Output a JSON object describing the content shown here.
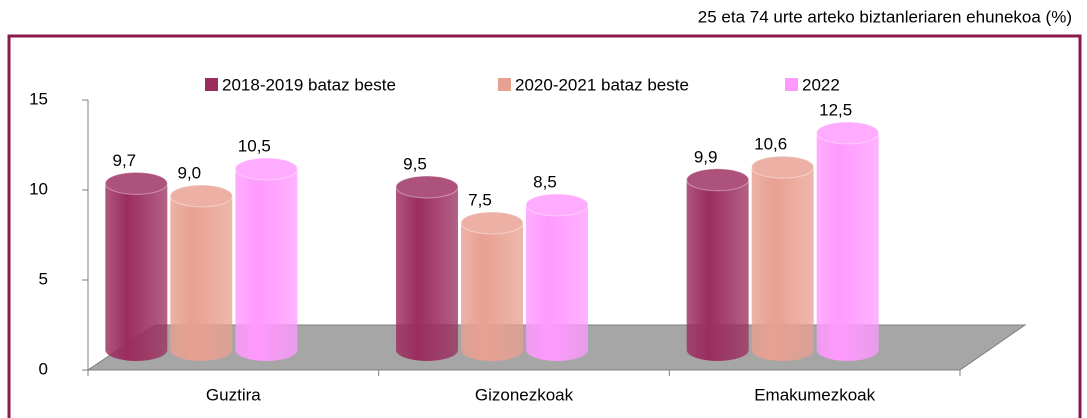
{
  "chart_data": {
    "type": "bar",
    "subtitle": "25 eta 74 urte arteko biztanleriaren ehunekoa (%)",
    "categories": [
      "Guztira",
      "Gizonezkoak",
      "Emakumezkoak"
    ],
    "series": [
      {
        "name": "2018-2019 bataz beste",
        "color": "#9b2d5e",
        "values": [
          9.7,
          9.5,
          9.9
        ],
        "value_labels": [
          "9,7",
          "9,5",
          "9,9"
        ]
      },
      {
        "name": "2020-2021 bataz beste",
        "color": "#e8a091",
        "values": [
          9.0,
          7.5,
          10.6
        ],
        "value_labels": [
          "9,0",
          "7,5",
          "10,6"
        ]
      },
      {
        "name": "2022",
        "color": "#ff99ff",
        "values": [
          10.5,
          8.5,
          12.5
        ],
        "value_labels": [
          "10,5",
          "8,5",
          "12,5"
        ]
      }
    ],
    "ylim": [
      0,
      15
    ],
    "yticks": [
      0,
      5,
      10,
      15
    ],
    "legend": "top"
  }
}
